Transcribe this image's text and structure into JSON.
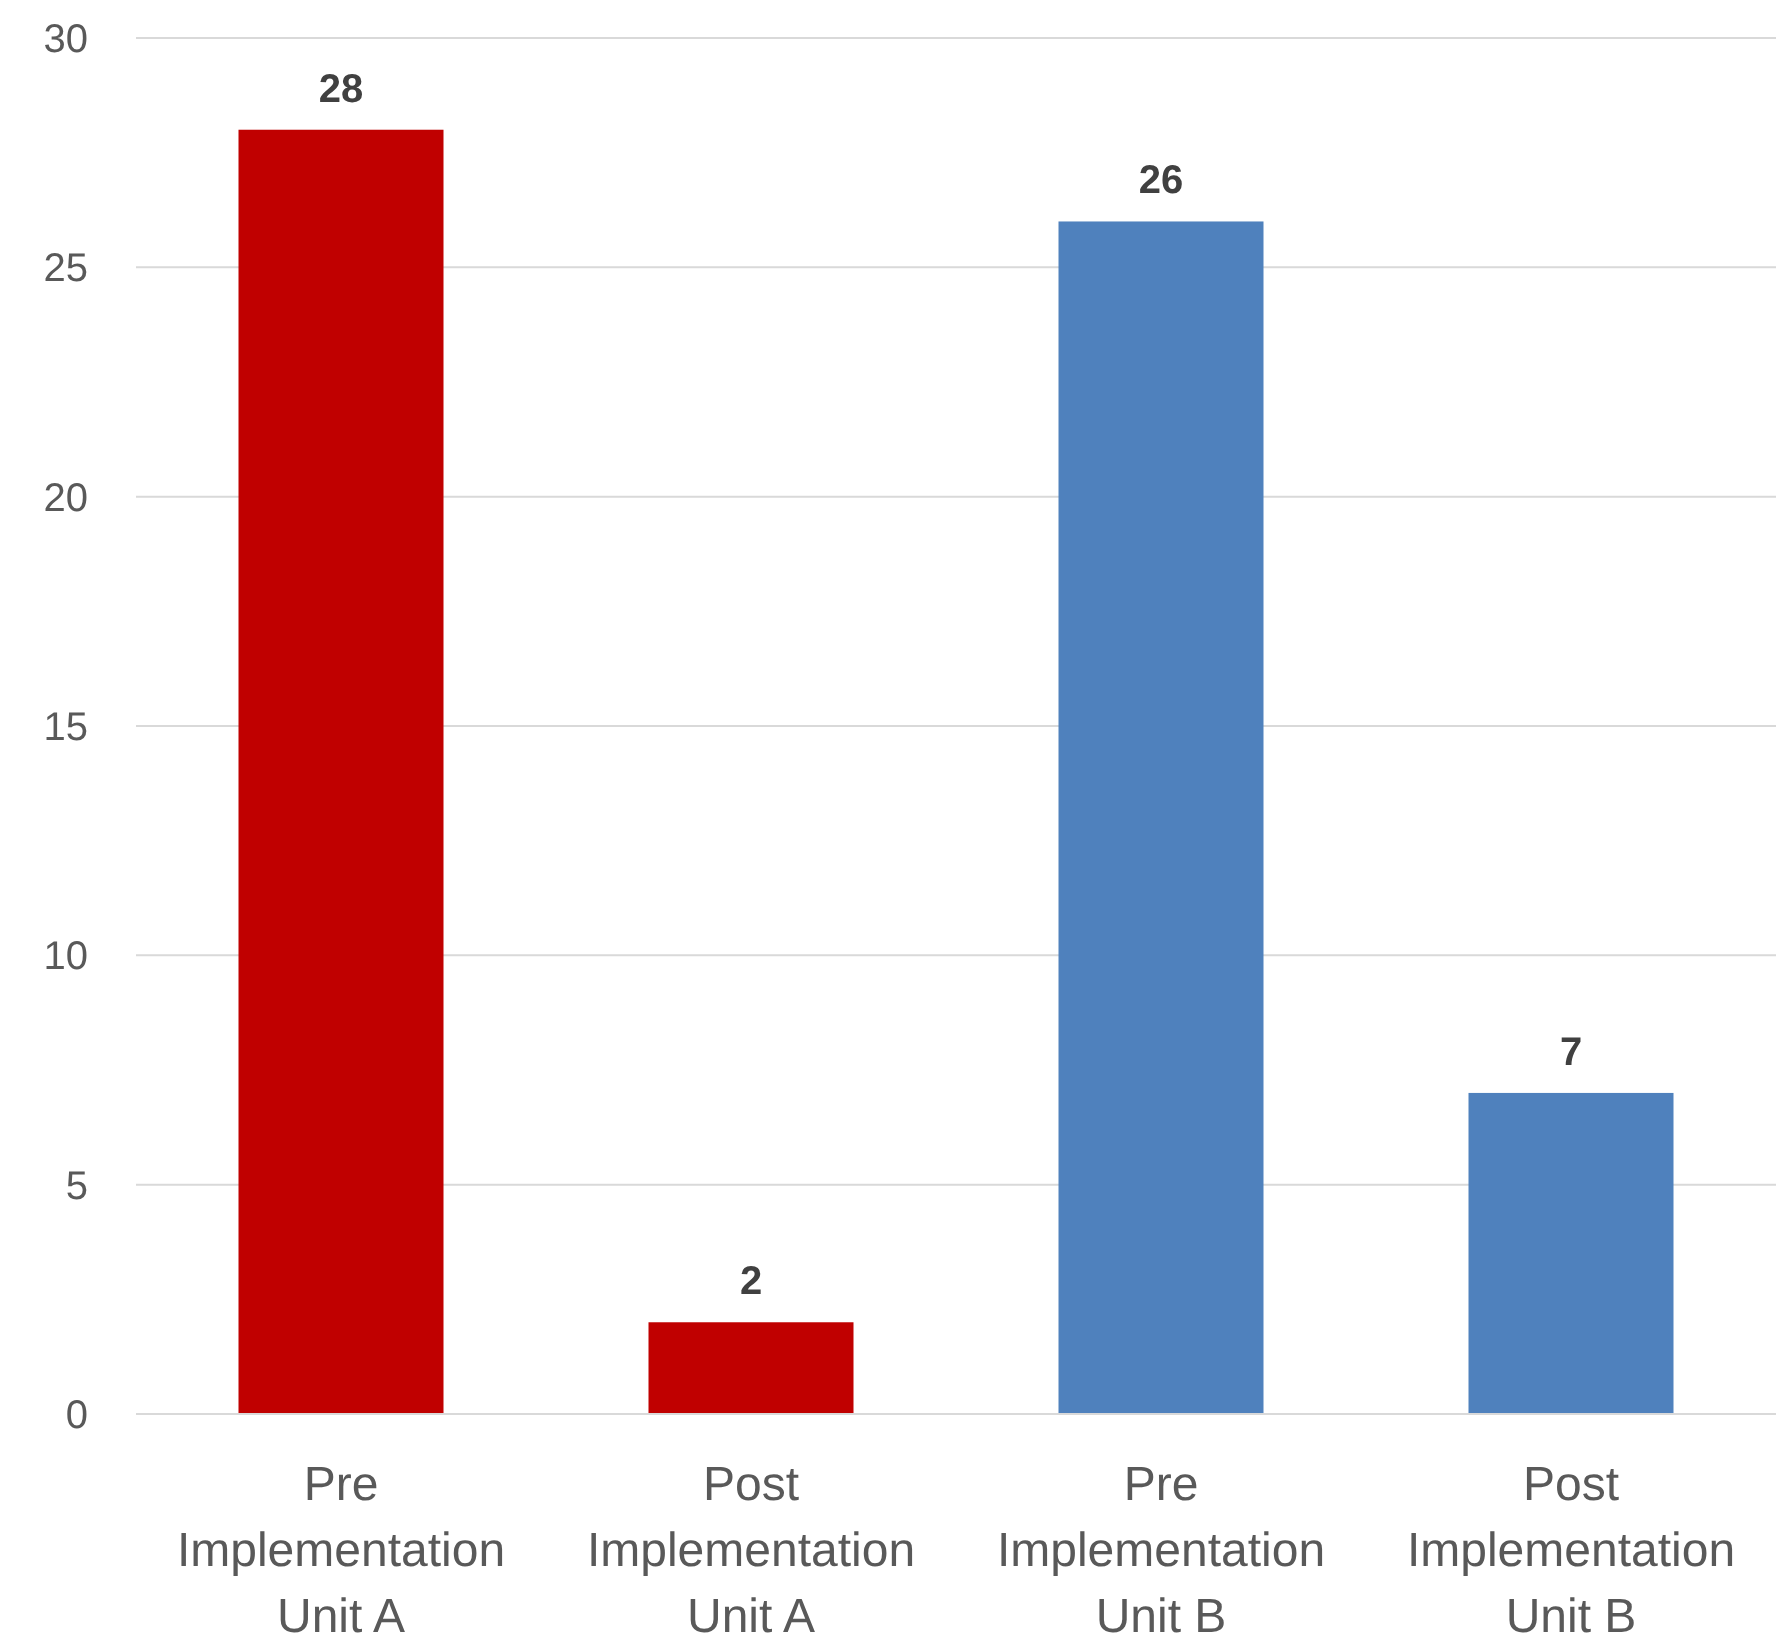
{
  "chart_data": {
    "type": "bar",
    "categories": [
      "Pre Implementation Unit A",
      "Post Implementation Unit A",
      "Pre Implementation Unit B",
      "Post Implementation Unit B"
    ],
    "values": [
      28,
      2,
      26,
      7
    ],
    "colors": [
      "#c00000",
      "#c00000",
      "#4f81bd",
      "#4f81bd"
    ],
    "ylim": [
      0,
      30
    ],
    "yticks": [
      0,
      5,
      10,
      15,
      20,
      25,
      30
    ],
    "grid": "y",
    "data_labels": true
  }
}
